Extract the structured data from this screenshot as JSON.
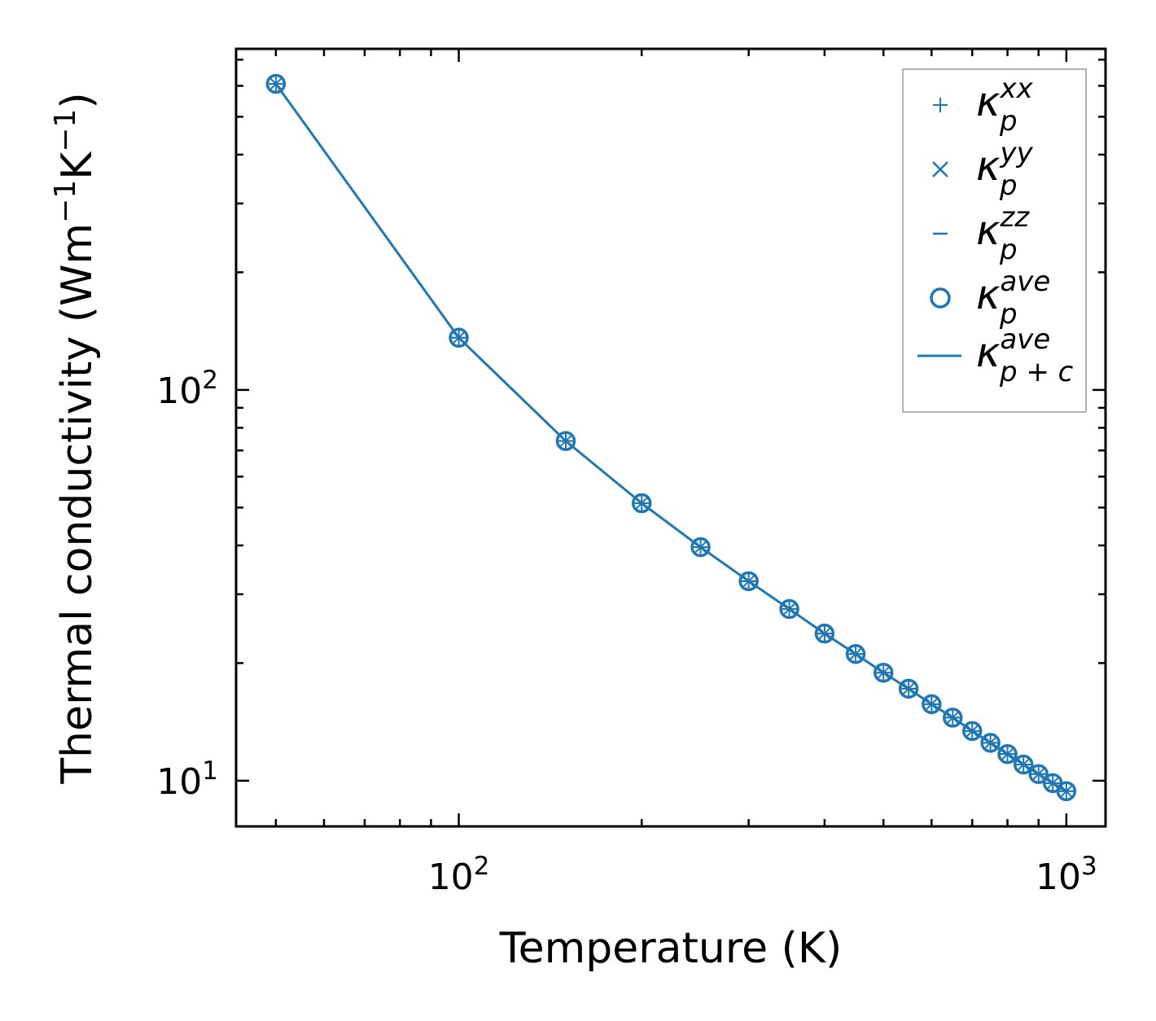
{
  "chart_data": {
    "type": "line",
    "xscale": "log",
    "yscale": "log",
    "xlabel": "Temperature (K)",
    "ylabel": {
      "text": "Thermal conductivity (Wm",
      "exp1": "−1",
      "mid": "K",
      "exp2": "−1",
      "end": ")"
    },
    "xlim": [
      43,
      1160
    ],
    "ylim": [
      7.64,
      746
    ],
    "x_ticks": [
      {
        "value": 100,
        "base": "10",
        "exp": "2"
      },
      {
        "value": 1000,
        "base": "10",
        "exp": "3"
      }
    ],
    "y_ticks": [
      {
        "value": 10,
        "base": "10",
        "exp": "1"
      },
      {
        "value": 100,
        "base": "10",
        "exp": "2"
      }
    ],
    "color": "#1f77b4",
    "x": [
      50,
      100,
      150,
      200,
      250,
      300,
      350,
      400,
      450,
      500,
      550,
      600,
      650,
      700,
      750,
      800,
      850,
      900,
      950,
      1000
    ],
    "series": [
      {
        "name": "kappa_p_xx",
        "label": {
          "symbol": "κ",
          "sub": "p",
          "sup": "xx"
        },
        "marker": "plus",
        "values": [
          607,
          136,
          74.0,
          51.3,
          39.6,
          32.4,
          27.5,
          23.8,
          21.1,
          18.9,
          17.2,
          15.7,
          14.5,
          13.4,
          12.5,
          11.7,
          11.0,
          10.4,
          9.86,
          9.4
        ]
      },
      {
        "name": "kappa_p_yy",
        "label": {
          "symbol": "κ",
          "sub": "p",
          "sup": "yy"
        },
        "marker": "x",
        "values": [
          607,
          136,
          74.0,
          51.3,
          39.6,
          32.4,
          27.5,
          23.8,
          21.1,
          18.9,
          17.2,
          15.7,
          14.5,
          13.4,
          12.5,
          11.7,
          11.0,
          10.4,
          9.86,
          9.4
        ]
      },
      {
        "name": "kappa_p_zz",
        "label": {
          "symbol": "κ",
          "sub": "p",
          "sup": "zz"
        },
        "marker": "hline",
        "values": [
          607,
          136,
          74.0,
          51.3,
          39.6,
          32.4,
          27.5,
          23.8,
          21.1,
          18.9,
          17.2,
          15.7,
          14.5,
          13.4,
          12.5,
          11.7,
          11.0,
          10.4,
          9.86,
          9.4
        ]
      },
      {
        "name": "kappa_p_ave",
        "label": {
          "symbol": "κ",
          "sub": "p",
          "sup": "ave"
        },
        "marker": "circle",
        "values": [
          607,
          136,
          74.0,
          51.3,
          39.6,
          32.4,
          27.5,
          23.8,
          21.1,
          18.9,
          17.2,
          15.7,
          14.5,
          13.4,
          12.5,
          11.7,
          11.0,
          10.4,
          9.86,
          9.4
        ]
      },
      {
        "name": "kappa_pc_ave",
        "label": {
          "symbol": "κ",
          "sub": "p + c",
          "sup": "ave"
        },
        "marker": "line",
        "values": [
          607,
          136,
          74.0,
          51.3,
          39.6,
          32.4,
          27.5,
          23.8,
          21.1,
          18.9,
          17.2,
          15.7,
          14.5,
          13.4,
          12.5,
          11.7,
          11.0,
          10.4,
          9.86,
          9.4
        ]
      }
    ],
    "legend": "top-right",
    "grid": false
  }
}
